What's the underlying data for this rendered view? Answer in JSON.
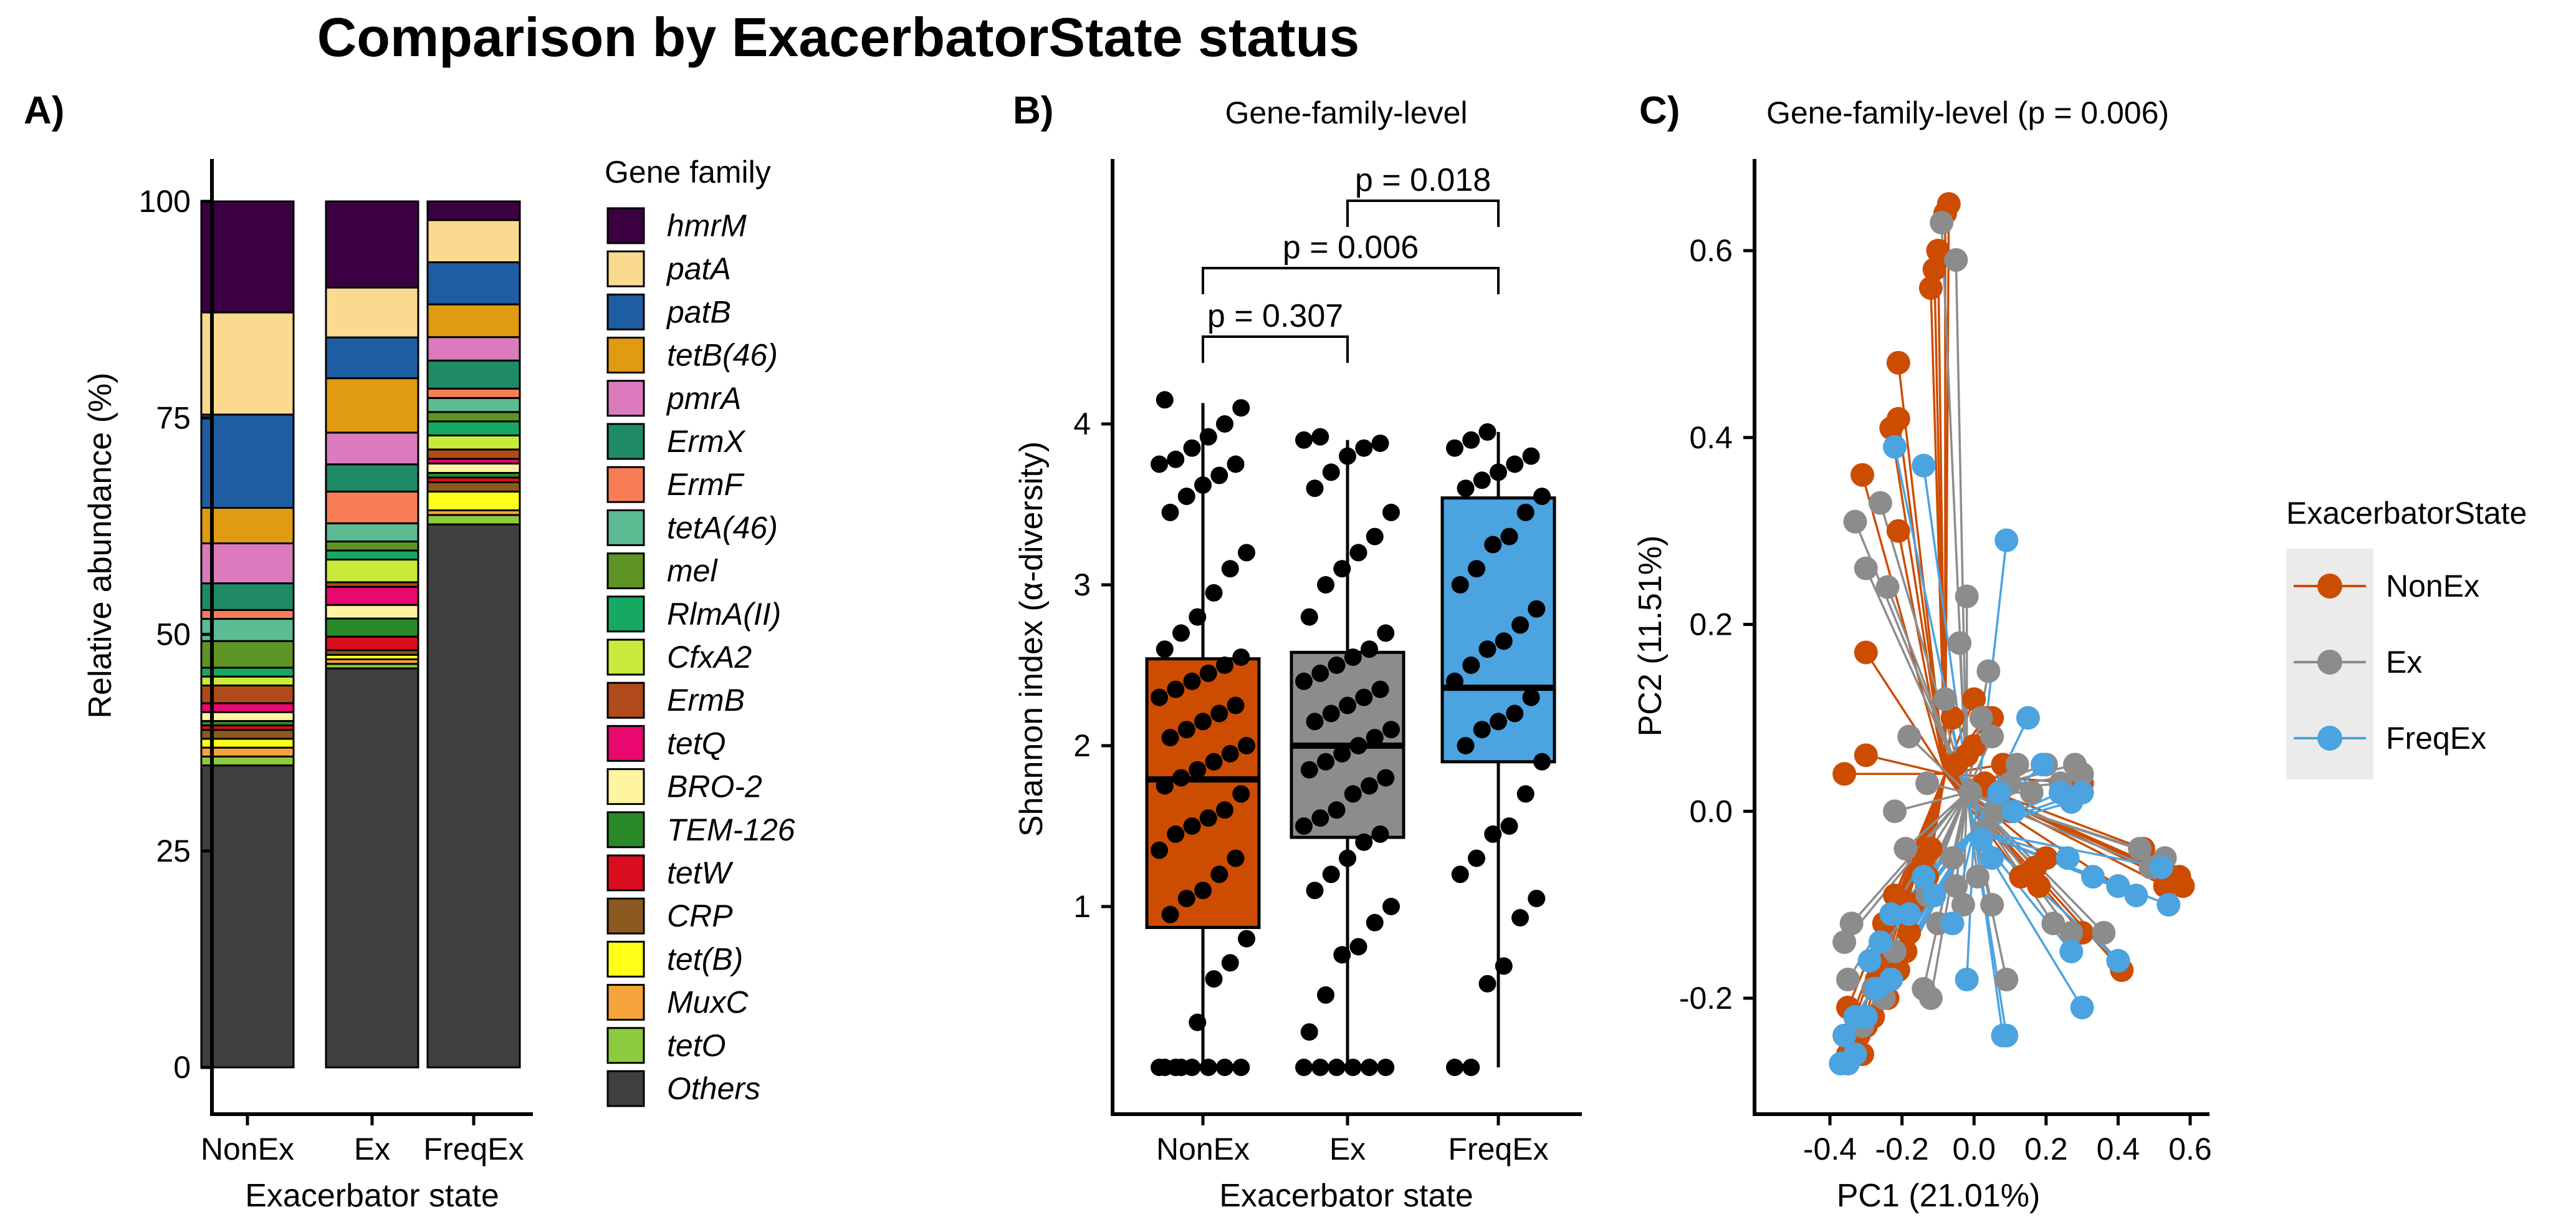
{
  "figure": {
    "title": "Comparison by ExacerbatorState status",
    "panel_labels": [
      "A)",
      "B)",
      "C)"
    ]
  },
  "colors": {
    "NonEx": "#CC4C02",
    "Ex": "#8C8C8C",
    "FreqEx": "#4BA3E0"
  },
  "chart_data": [
    {
      "type": "bar",
      "stacked": true,
      "panel": "A)",
      "title": "",
      "xlabel": "Exacerbator state",
      "ylabel": "Relative abundance (%)",
      "ylim": [
        0,
        100
      ],
      "yticks": [
        0,
        25,
        50,
        75,
        100
      ],
      "categories": [
        "NonEx",
        "Ex",
        "FreqEx"
      ],
      "legend_title": "Gene family",
      "legend_position": "right",
      "series": [
        {
          "name": "hmrM",
          "color": "#3B0042",
          "values": [
            12.5,
            9.5,
            2.0
          ]
        },
        {
          "name": "patA",
          "color": "#FADA8E",
          "values": [
            11.5,
            5.5,
            4.5
          ]
        },
        {
          "name": "patB",
          "color": "#1F5DA3",
          "values": [
            10.5,
            4.5,
            4.5
          ]
        },
        {
          "name": "tetB(46)",
          "color": "#E09B12",
          "values": [
            4.0,
            6.0,
            3.5
          ]
        },
        {
          "name": "pmrA",
          "color": "#DB7BBD",
          "values": [
            4.5,
            3.5,
            2.5
          ]
        },
        {
          "name": "ErmX",
          "color": "#1E8A66",
          "values": [
            3.0,
            3.0,
            3.0
          ]
        },
        {
          "name": "ErmF",
          "color": "#F77D56",
          "values": [
            1.0,
            3.5,
            1.0
          ]
        },
        {
          "name": "tetA(46)",
          "color": "#5DBB94",
          "values": [
            2.5,
            2.0,
            1.5
          ]
        },
        {
          "name": "mel",
          "color": "#5E9423",
          "values": [
            3.0,
            1.0,
            1.0
          ]
        },
        {
          "name": "RlmA(II)",
          "color": "#17A864",
          "values": [
            1.0,
            1.0,
            1.5
          ]
        },
        {
          "name": "CfxA2",
          "color": "#C8EB3B",
          "values": [
            1.0,
            2.5,
            1.5
          ]
        },
        {
          "name": "ErmB",
          "color": "#B04A1A",
          "values": [
            2.0,
            0.5,
            1.0
          ]
        },
        {
          "name": "tetQ",
          "color": "#E8086E",
          "values": [
            1.0,
            2.0,
            0.5
          ]
        },
        {
          "name": "BRO-2",
          "color": "#FFF4A0",
          "values": [
            1.0,
            1.5,
            1.0
          ]
        },
        {
          "name": "TEM-126",
          "color": "#2A8A2A",
          "values": [
            0.5,
            2.0,
            0.5
          ]
        },
        {
          "name": "tetW",
          "color": "#D90D1E",
          "values": [
            0.5,
            1.5,
            0.5
          ]
        },
        {
          "name": "CRP",
          "color": "#8C5A20",
          "values": [
            1.0,
            0.5,
            1.0
          ]
        },
        {
          "name": "tet(B)",
          "color": "#FFFF1A",
          "values": [
            1.0,
            0.5,
            2.0
          ]
        },
        {
          "name": "MuxC",
          "color": "#F5A33A",
          "values": [
            1.0,
            0.5,
            0.5
          ]
        },
        {
          "name": "tetO",
          "color": "#8DCB3E",
          "values": [
            1.0,
            0.5,
            1.0
          ]
        },
        {
          "name": "Others",
          "color": "#3F3F3F",
          "values": [
            34.0,
            44.0,
            58.0
          ]
        }
      ]
    },
    {
      "type": "box",
      "panel": "B)",
      "title": "Gene-family-level",
      "xlabel": "Exacerbator state",
      "ylabel": "Shannon index (α-diversity)",
      "ylim": [
        -0.3,
        4.7
      ],
      "yticks": [
        1,
        2,
        3,
        4
      ],
      "categories": [
        "NonEx",
        "Ex",
        "FreqEx"
      ],
      "boxes": [
        {
          "name": "NonEx",
          "q1": 0.87,
          "median": 1.79,
          "q3": 2.54,
          "whisker_low": 0.0,
          "whisker_high": 4.13
        },
        {
          "name": "Ex",
          "q1": 1.43,
          "median": 2.0,
          "q3": 2.58,
          "whisker_low": 0.0,
          "whisker_high": 3.9
        },
        {
          "name": "FreqEx",
          "q1": 1.9,
          "median": 2.36,
          "q3": 3.54,
          "whisker_low": 0.0,
          "whisker_high": 3.95
        }
      ],
      "points": {
        "NonEx": [
          0,
          0,
          0,
          0,
          0,
          0,
          0,
          0,
          0.28,
          0.55,
          0.65,
          0.8,
          0.95,
          1.05,
          1.1,
          1.2,
          1.3,
          1.35,
          1.45,
          1.5,
          1.55,
          1.6,
          1.7,
          1.75,
          1.8,
          1.85,
          1.9,
          1.95,
          2.0,
          2.05,
          2.1,
          2.15,
          2.2,
          2.25,
          2.3,
          2.35,
          2.4,
          2.45,
          2.5,
          2.55,
          2.6,
          2.7,
          2.8,
          2.95,
          3.1,
          3.2,
          3.45,
          3.55,
          3.62,
          3.68,
          3.75,
          3.75,
          3.78,
          3.85,
          3.92,
          4.0,
          4.1,
          4.15
        ],
        "Ex": [
          0,
          0,
          0,
          0,
          0,
          0,
          0.22,
          0.45,
          0.7,
          0.75,
          0.9,
          1.0,
          1.1,
          1.2,
          1.3,
          1.4,
          1.45,
          1.5,
          1.55,
          1.6,
          1.7,
          1.75,
          1.8,
          1.85,
          1.9,
          1.95,
          2.0,
          2.05,
          2.1,
          2.15,
          2.2,
          2.25,
          2.3,
          2.35,
          2.4,
          2.45,
          2.5,
          2.55,
          2.6,
          2.7,
          2.8,
          3.0,
          3.1,
          3.2,
          3.3,
          3.45,
          3.6,
          3.7,
          3.8,
          3.85,
          3.88,
          3.9,
          3.92
        ],
        "FreqEx": [
          0,
          0,
          0.52,
          0.63,
          0.93,
          1.05,
          1.2,
          1.3,
          1.45,
          1.5,
          1.7,
          1.9,
          2.0,
          2.1,
          2.15,
          2.2,
          2.3,
          2.4,
          2.5,
          2.6,
          2.65,
          2.75,
          2.85,
          3.0,
          3.1,
          3.25,
          3.3,
          3.45,
          3.55,
          3.6,
          3.65,
          3.7,
          3.75,
          3.8,
          3.85,
          3.9,
          3.95
        ]
      },
      "comparisons": [
        {
          "from": "NonEx",
          "to": "Ex",
          "label": "p = 0.307",
          "y": 4.5
        },
        {
          "from": "NonEx",
          "to": "FreqEx",
          "label": "p = 0.006",
          "y": 4.9
        },
        {
          "from": "Ex",
          "to": "FreqEx",
          "label": "p = 0.018",
          "y": 5.3
        }
      ]
    },
    {
      "type": "scatter",
      "panel": "C)",
      "title": "Gene-family-level (p = 0.006)",
      "xlabel": "PC1 (21.01%)",
      "ylabel": "PC2 (11.51%)",
      "xlim": [
        -0.4,
        0.63
      ],
      "ylim": [
        -0.3,
        0.7
      ],
      "xticks": [
        -0.4,
        -0.2,
        0.0,
        0.2,
        0.4,
        0.6
      ],
      "yticks": [
        -0.2,
        0.0,
        0.2,
        0.4,
        0.6
      ],
      "legend_title": "ExacerbatorState",
      "legend_position": "right",
      "groups": [
        {
          "name": "NonEx",
          "centroid": [
            -0.08,
            0.04
          ],
          "points": [
            [
              -0.07,
              0.65
            ],
            [
              -0.08,
              0.64
            ],
            [
              -0.1,
              0.6
            ],
            [
              -0.12,
              0.56
            ],
            [
              -0.11,
              0.58
            ],
            [
              -0.21,
              0.48
            ],
            [
              -0.23,
              0.41
            ],
            [
              -0.21,
              0.42
            ],
            [
              -0.31,
              0.36
            ],
            [
              -0.21,
              0.3
            ],
            [
              -0.3,
              0.17
            ],
            [
              -0.36,
              0.04
            ],
            [
              -0.3,
              0.06
            ],
            [
              -0.06,
              0.1
            ],
            [
              0.0,
              0.12
            ],
            [
              0.03,
              0.1
            ],
            [
              0.05,
              0.1
            ],
            [
              0.0,
              0.07
            ],
            [
              -0.02,
              0.06
            ],
            [
              -0.05,
              0.05
            ],
            [
              0.03,
              0.03
            ],
            [
              0.1,
              0.0
            ],
            [
              0.08,
              0.05
            ],
            [
              0.17,
              -0.06
            ],
            [
              0.2,
              -0.05
            ],
            [
              0.13,
              -0.07
            ],
            [
              0.18,
              -0.08
            ],
            [
              0.3,
              0.03
            ],
            [
              0.3,
              -0.13
            ],
            [
              0.41,
              -0.17
            ],
            [
              0.4,
              -0.08
            ],
            [
              0.47,
              -0.04
            ],
            [
              0.5,
              -0.06
            ],
            [
              0.53,
              -0.08
            ],
            [
              0.55,
              -0.07
            ],
            [
              0.57,
              -0.07
            ],
            [
              0.58,
              -0.08
            ],
            [
              -0.12,
              -0.04
            ],
            [
              -0.14,
              -0.05
            ],
            [
              -0.13,
              -0.07
            ],
            [
              -0.17,
              -0.1
            ],
            [
              -0.18,
              -0.13
            ],
            [
              -0.19,
              -0.15
            ],
            [
              -0.21,
              -0.17
            ],
            [
              -0.24,
              -0.2
            ],
            [
              -0.27,
              -0.18
            ],
            [
              -0.28,
              -0.22
            ],
            [
              -0.3,
              -0.23
            ],
            [
              -0.32,
              -0.24
            ],
            [
              -0.33,
              -0.22
            ],
            [
              -0.34,
              -0.25
            ],
            [
              -0.31,
              -0.26
            ],
            [
              -0.35,
              -0.26
            ],
            [
              -0.36,
              -0.24
            ],
            [
              -0.35,
              -0.21
            ],
            [
              -0.27,
              -0.16
            ],
            [
              -0.25,
              -0.12
            ],
            [
              -0.22,
              -0.09
            ]
          ]
        },
        {
          "name": "Ex",
          "centroid": [
            -0.02,
            0.02
          ],
          "points": [
            [
              -0.09,
              0.63
            ],
            [
              -0.05,
              0.59
            ],
            [
              -0.33,
              0.31
            ],
            [
              -0.26,
              0.33
            ],
            [
              -0.3,
              0.26
            ],
            [
              -0.24,
              0.24
            ],
            [
              -0.02,
              0.23
            ],
            [
              -0.04,
              0.18
            ],
            [
              0.04,
              0.15
            ],
            [
              -0.08,
              0.12
            ],
            [
              0.02,
              0.1
            ],
            [
              0.05,
              0.08
            ],
            [
              -0.01,
              0.02
            ],
            [
              0.03,
              -0.02
            ],
            [
              0.06,
              0.0
            ],
            [
              0.1,
              0.03
            ],
            [
              0.12,
              0.05
            ],
            [
              0.16,
              0.02
            ],
            [
              0.2,
              0.05
            ],
            [
              0.24,
              0.03
            ],
            [
              0.28,
              0.05
            ],
            [
              0.3,
              0.04
            ],
            [
              0.46,
              -0.04
            ],
            [
              0.49,
              -0.06
            ],
            [
              0.53,
              -0.05
            ],
            [
              0.22,
              -0.12
            ],
            [
              0.27,
              -0.13
            ],
            [
              0.36,
              -0.13
            ],
            [
              0.4,
              -0.16
            ],
            [
              0.09,
              -0.18
            ],
            [
              0.01,
              -0.07
            ],
            [
              -0.05,
              -0.08
            ],
            [
              -0.1,
              -0.12
            ],
            [
              -0.12,
              -0.2
            ],
            [
              -0.14,
              -0.19
            ],
            [
              -0.22,
              -0.15
            ],
            [
              -0.25,
              -0.2
            ],
            [
              -0.28,
              -0.19
            ],
            [
              -0.31,
              -0.23
            ],
            [
              -0.35,
              -0.18
            ],
            [
              -0.36,
              -0.14
            ],
            [
              -0.34,
              -0.12
            ],
            [
              -0.19,
              -0.04
            ],
            [
              -0.13,
              -0.09
            ],
            [
              -0.06,
              -0.05
            ],
            [
              -0.03,
              -0.1
            ],
            [
              0.05,
              -0.1
            ],
            [
              -0.22,
              0.0
            ],
            [
              -0.13,
              0.03
            ],
            [
              -0.18,
              0.08
            ]
          ]
        },
        {
          "name": "FreqEx",
          "centroid": [
            0.0,
            -0.02
          ],
          "points": [
            [
              -0.22,
              0.39
            ],
            [
              -0.14,
              0.37
            ],
            [
              0.09,
              0.29
            ],
            [
              0.15,
              0.1
            ],
            [
              0.19,
              0.05
            ],
            [
              0.24,
              0.02
            ],
            [
              0.27,
              0.01
            ],
            [
              0.3,
              0.02
            ],
            [
              0.26,
              -0.05
            ],
            [
              0.33,
              -0.07
            ],
            [
              0.4,
              -0.08
            ],
            [
              0.45,
              -0.09
            ],
            [
              0.52,
              -0.06
            ],
            [
              0.54,
              -0.1
            ],
            [
              0.4,
              -0.16
            ],
            [
              0.27,
              -0.15
            ],
            [
              0.3,
              -0.21
            ],
            [
              0.09,
              -0.24
            ],
            [
              0.08,
              -0.24
            ],
            [
              -0.02,
              -0.18
            ],
            [
              -0.06,
              -0.12
            ],
            [
              -0.11,
              -0.09
            ],
            [
              -0.14,
              -0.07
            ],
            [
              -0.18,
              -0.11
            ],
            [
              -0.23,
              -0.11
            ],
            [
              -0.26,
              -0.14
            ],
            [
              -0.29,
              -0.16
            ],
            [
              -0.3,
              -0.22
            ],
            [
              -0.33,
              -0.26
            ],
            [
              -0.35,
              -0.27
            ],
            [
              -0.37,
              -0.27
            ],
            [
              -0.36,
              -0.24
            ],
            [
              -0.33,
              -0.22
            ],
            [
              -0.27,
              -0.19
            ],
            [
              -0.23,
              -0.18
            ],
            [
              0.05,
              -0.05
            ],
            [
              0.02,
              -0.03
            ],
            [
              0.07,
              0.02
            ],
            [
              0.11,
              0.0
            ]
          ]
        }
      ]
    }
  ]
}
